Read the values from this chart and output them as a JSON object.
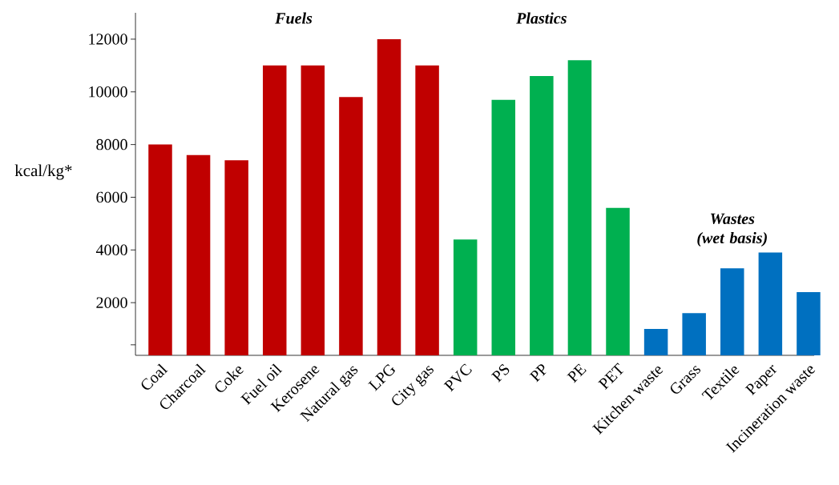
{
  "chart_data": {
    "type": "bar",
    "ylabel": "kcal/kg*",
    "categories": [
      "Coal",
      "Charcoal",
      "Coke",
      "Fuel oil",
      "Kerosene",
      "Natural gas",
      "LPG",
      "City gas",
      "PVC",
      "PS",
      "PP",
      "PE",
      "PET",
      "Kitchen waste",
      "Grass",
      "Textile",
      "Paper",
      "Incineration waste"
    ],
    "series": [
      {
        "name": "Fuels",
        "color": "#c00000",
        "values": [
          8000,
          7600,
          7400,
          11000,
          11000,
          9800,
          12000,
          11000,
          null,
          null,
          null,
          null,
          null,
          null,
          null,
          null,
          null,
          null
        ]
      },
      {
        "name": "Plastics",
        "color": "#00b050",
        "values": [
          null,
          null,
          null,
          null,
          null,
          null,
          null,
          null,
          4400,
          9700,
          10600,
          11200,
          5600,
          null,
          null,
          null,
          null,
          null
        ]
      },
      {
        "name": "Wastes (wet basis)",
        "color": "#0070c0",
        "values": [
          null,
          null,
          null,
          null,
          null,
          null,
          null,
          null,
          null,
          null,
          null,
          null,
          null,
          1000,
          1600,
          3300,
          3900,
          2400
        ]
      }
    ],
    "ylim": [
      0,
      13000
    ],
    "yticks": [
      {
        "value": 400,
        "label": null
      },
      2000,
      4000,
      6000,
      8000,
      10000,
      12000
    ]
  }
}
